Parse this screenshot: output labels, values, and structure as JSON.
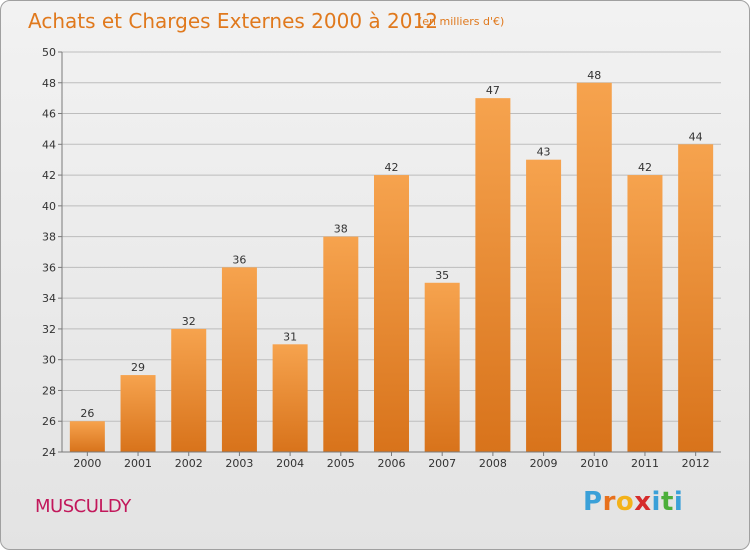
{
  "header": {
    "title": "Achats et Charges Externes 2000 à 2012",
    "subtitle": "(en milliers d'€)"
  },
  "footer": {
    "place": "MUSCULDY",
    "logo_letters": [
      "P",
      "r",
      "o",
      "x",
      "i",
      "t",
      "i"
    ],
    "logo_colors": [
      "#3aa0d8",
      "#e8711d",
      "#f3b21a",
      "#d62b2b",
      "#3aa0d8",
      "#4caf3a",
      "#3aa0d8"
    ]
  },
  "colors": {
    "bar_top": "#f6a34e",
    "bar_bottom": "#d8731b",
    "grid": "#bdbdbd",
    "axis": "#7a7a7a",
    "label": "#333333"
  },
  "chart_data": {
    "type": "bar",
    "title": "Achats et Charges Externes 2000 à 2012",
    "categories": [
      "2000",
      "2001",
      "2002",
      "2003",
      "2004",
      "2005",
      "2006",
      "2007",
      "2008",
      "2009",
      "2010",
      "2011",
      "2012"
    ],
    "values": [
      26,
      29,
      32,
      36,
      31,
      38,
      42,
      35,
      47,
      43,
      48,
      42,
      44
    ],
    "ylim": [
      24,
      50
    ],
    "yticks": [
      24,
      26,
      28,
      30,
      32,
      34,
      36,
      38,
      40,
      42,
      44,
      46,
      48,
      50
    ],
    "grid": true,
    "xlabel": "",
    "ylabel": ""
  }
}
